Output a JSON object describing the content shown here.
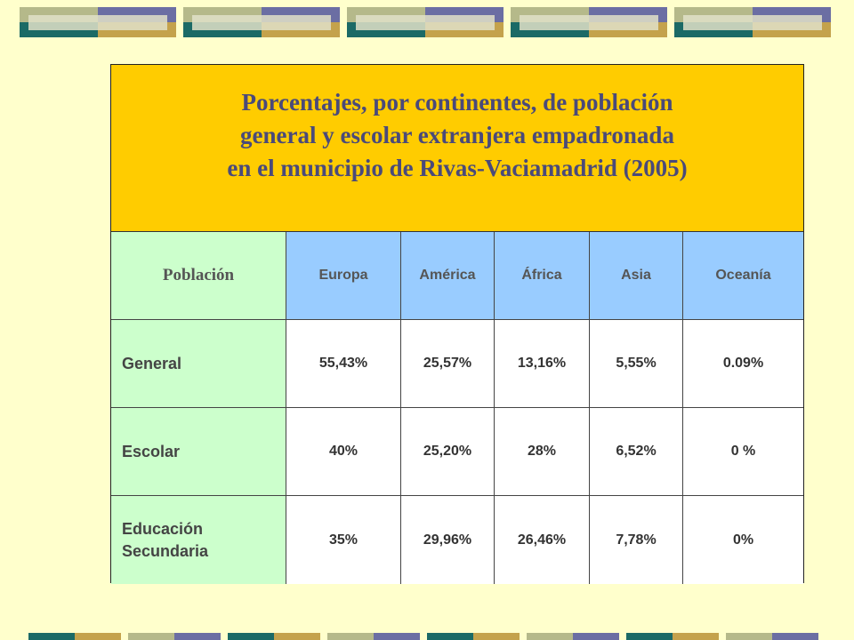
{
  "title": {
    "lines": [
      "Porcentajes, por continentes, de población",
      "general y escolar extranjera empadronada",
      "en el municipio de Rivas-Vaciamadrid (2005)"
    ]
  },
  "table": {
    "header": {
      "row_label": "Población",
      "columns": [
        "Europa",
        "América",
        "África",
        "Asia",
        "Oceanía"
      ]
    },
    "rows": [
      {
        "label": "General",
        "values": [
          "55,43%",
          "25,57%",
          "13,16%",
          "5,55%",
          "0.09%"
        ]
      },
      {
        "label": "Escolar",
        "values": [
          "40%",
          "25,20%",
          "28%",
          "6,52%",
          "0 %"
        ]
      },
      {
        "label_lines": [
          "Educación",
          "Secundaria"
        ],
        "values": [
          "35%",
          "29,96%",
          "26,46%",
          "7,78%",
          "0%"
        ]
      }
    ]
  },
  "colors": {
    "background": "#ffffcc",
    "title_fill": "#ffcc00",
    "title_text": "#4a4a7a",
    "header_fill": "#99ccff",
    "row_label_fill": "#ccffcc"
  }
}
